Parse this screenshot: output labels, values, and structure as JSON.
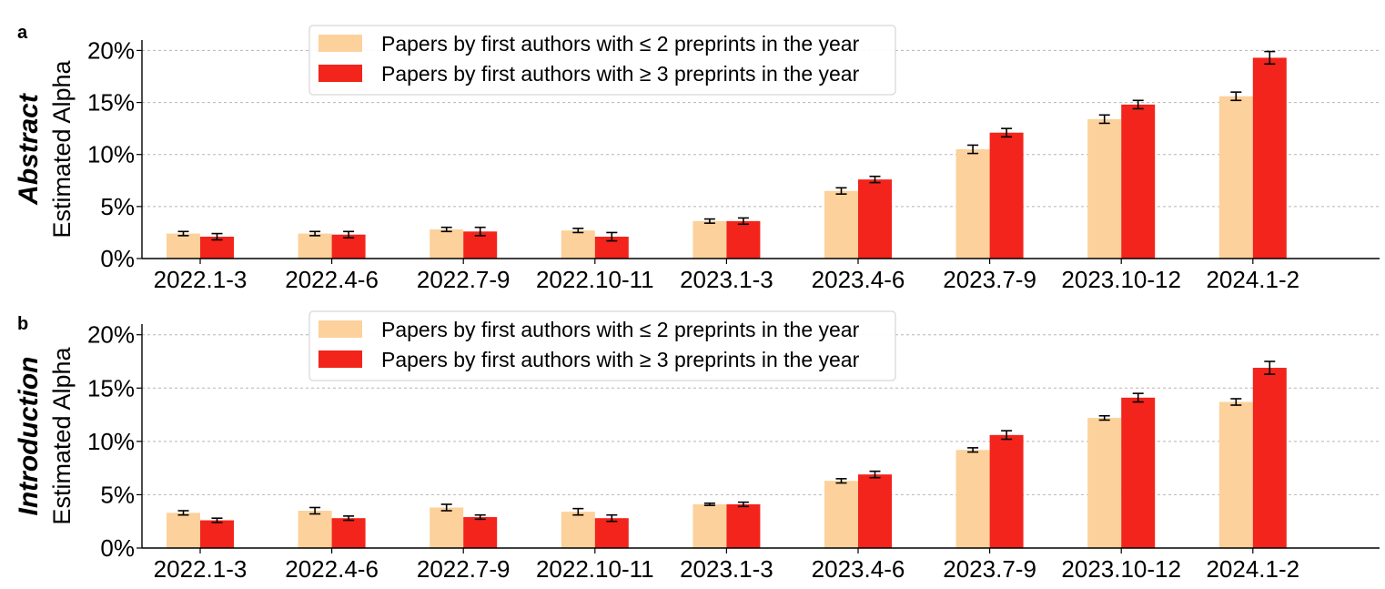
{
  "chart_data": [
    {
      "panel_letter": "a",
      "row_title": "Abstract",
      "type": "bar",
      "ylabel": "Estimated Alpha",
      "xlabel": "",
      "ylim": [
        0,
        21
      ],
      "yticks": [
        0,
        5,
        10,
        15,
        20
      ],
      "ytick_labels": [
        "0%",
        "5%",
        "10%",
        "15%",
        "20%"
      ],
      "grid": "horizontal dashed",
      "legend_position": "top-center",
      "categories": [
        "2022.1-3",
        "2022.4-6",
        "2022.7-9",
        "2022.10-11",
        "2023.1-3",
        "2023.4-6",
        "2023.7-9",
        "2023.10-12",
        "2024.1-2"
      ],
      "series": [
        {
          "name": "Papers by first authors with ≤ 2 preprints in the year",
          "color": "#fdd19b",
          "values": [
            2.4,
            2.4,
            2.8,
            2.7,
            3.6,
            6.5,
            10.5,
            13.4,
            15.6
          ],
          "errors": [
            0.2,
            0.2,
            0.2,
            0.2,
            0.2,
            0.3,
            0.4,
            0.4,
            0.4
          ]
        },
        {
          "name": "Papers by first authors with ≥ 3 preprints in the year",
          "color": "#f2241b",
          "values": [
            2.1,
            2.3,
            2.6,
            2.1,
            3.6,
            7.6,
            12.1,
            14.8,
            19.3
          ],
          "errors": [
            0.3,
            0.3,
            0.4,
            0.4,
            0.3,
            0.3,
            0.4,
            0.4,
            0.6
          ]
        }
      ]
    },
    {
      "panel_letter": "b",
      "row_title": "Introduction",
      "type": "bar",
      "ylabel": "Estimated Alpha",
      "xlabel": "",
      "ylim": [
        0,
        21
      ],
      "yticks": [
        0,
        5,
        10,
        15,
        20
      ],
      "ytick_labels": [
        "0%",
        "5%",
        "10%",
        "15%",
        "20%"
      ],
      "grid": "horizontal dashed",
      "legend_position": "top-center",
      "categories": [
        "2022.1-3",
        "2022.4-6",
        "2022.7-9",
        "2022.10-11",
        "2023.1-3",
        "2023.4-6",
        "2023.7-9",
        "2023.10-12",
        "2024.1-2"
      ],
      "series": [
        {
          "name": "Papers by first authors with ≤ 2 preprints in the year",
          "color": "#fdd19b",
          "values": [
            3.3,
            3.5,
            3.8,
            3.4,
            4.1,
            6.3,
            9.2,
            12.2,
            13.7
          ],
          "errors": [
            0.2,
            0.3,
            0.3,
            0.3,
            0.1,
            0.2,
            0.2,
            0.2,
            0.3
          ]
        },
        {
          "name": "Papers by first authors with ≥ 3 preprints in the year",
          "color": "#f2241b",
          "values": [
            2.6,
            2.8,
            2.9,
            2.8,
            4.1,
            6.9,
            10.6,
            14.1,
            16.9
          ],
          "errors": [
            0.2,
            0.2,
            0.2,
            0.3,
            0.2,
            0.3,
            0.4,
            0.4,
            0.6
          ]
        }
      ]
    }
  ]
}
